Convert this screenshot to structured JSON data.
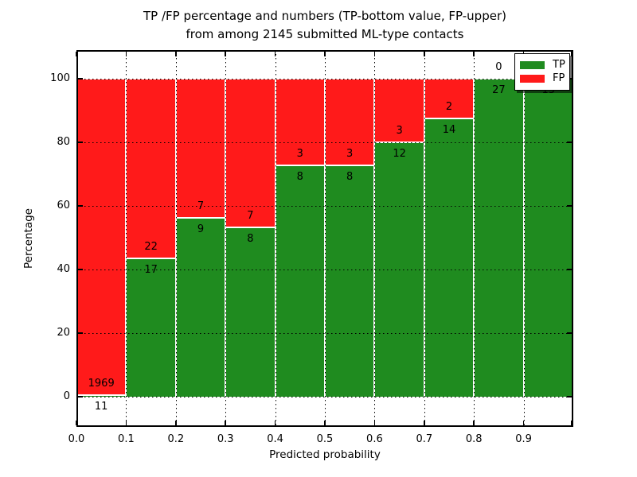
{
  "title": {
    "line1": "TP /FP percentage and numbers (TP-bottom value, FP-upper)",
    "line2": "from among 2145 submitted ML-type contacts"
  },
  "axes": {
    "xlabel": "Predicted probability",
    "ylabel": "Percentage"
  },
  "legend": {
    "items": [
      {
        "label": "TP",
        "color": "#1f8b1f"
      },
      {
        "label": "FP",
        "color": "#ff1a1a"
      }
    ]
  },
  "chart_data": {
    "type": "bar",
    "stacked": true,
    "normalized_to_percent": true,
    "title": "TP /FP percentage and numbers (TP-bottom value, FP-upper) from among 2145 submitted ML-type contacts",
    "xlabel": "Predicted probability",
    "ylabel": "Percentage",
    "total_contacts": 2145,
    "bins": [
      "0.0-0.1",
      "0.1-0.2",
      "0.2-0.3",
      "0.3-0.4",
      "0.4-0.5",
      "0.5-0.6",
      "0.6-0.7",
      "0.7-0.8",
      "0.8-0.9",
      "0.9-1.0"
    ],
    "series": [
      {
        "name": "TP",
        "color": "#1f8b1f",
        "counts": [
          11,
          17,
          9,
          8,
          8,
          8,
          12,
          14,
          27,
          15
        ]
      },
      {
        "name": "FP",
        "color": "#ff1a1a",
        "counts": [
          1969,
          22,
          7,
          7,
          3,
          3,
          3,
          2,
          0,
          0
        ]
      }
    ],
    "tp_percent": [
      0.56,
      43.59,
      56.25,
      53.33,
      72.73,
      72.73,
      80.0,
      87.5,
      100.0,
      100.0
    ],
    "x_ticks": [
      "0.0",
      "0.1",
      "0.2",
      "0.3",
      "0.4",
      "0.5",
      "0.6",
      "0.7",
      "0.8",
      "0.9"
    ],
    "y_ticks": [
      0,
      20,
      40,
      60,
      80,
      100
    ],
    "xlim": [
      0.0,
      1.0
    ],
    "ylim": [
      -9.5,
      109
    ],
    "grid": "dotted",
    "legend_position": "upper right",
    "legend": [
      "TP",
      "FP"
    ]
  }
}
